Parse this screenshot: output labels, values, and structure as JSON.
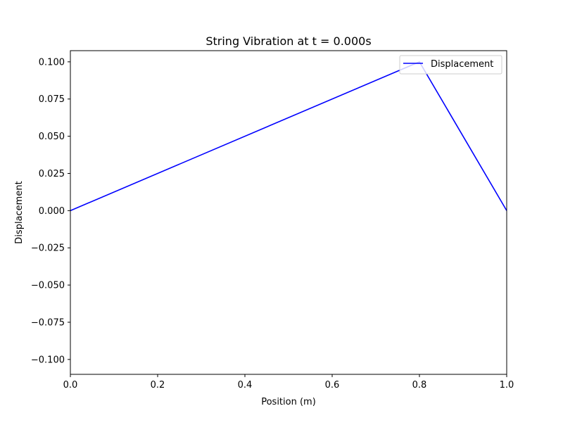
{
  "chart_data": {
    "type": "line",
    "title": "String Vibration at t = 0.000s",
    "xlabel": "Position (m)",
    "ylabel": "Displacement",
    "xlim": [
      0.0,
      1.0
    ],
    "ylim": [
      -0.11,
      0.1075
    ],
    "x_ticks": [
      0.0,
      0.2,
      0.4,
      0.6,
      0.8,
      1.0
    ],
    "x_tick_labels": [
      "0.0",
      "0.2",
      "0.4",
      "0.6",
      "0.8",
      "1.0"
    ],
    "y_ticks": [
      -0.1,
      -0.075,
      -0.05,
      -0.025,
      0.0,
      0.025,
      0.05,
      0.075,
      0.1
    ],
    "y_tick_labels": [
      "−0.100",
      "−0.075",
      "−0.050",
      "−0.025",
      "0.000",
      "0.025",
      "0.050",
      "0.075",
      "0.100"
    ],
    "grid": false,
    "legend": {
      "position": "top-right",
      "entries": [
        "Displacement"
      ]
    },
    "series": [
      {
        "name": "Displacement",
        "color": "#0000ff",
        "x": [
          0.0,
          0.8,
          1.0
        ],
        "y": [
          0.0,
          0.1,
          0.0
        ]
      }
    ]
  }
}
